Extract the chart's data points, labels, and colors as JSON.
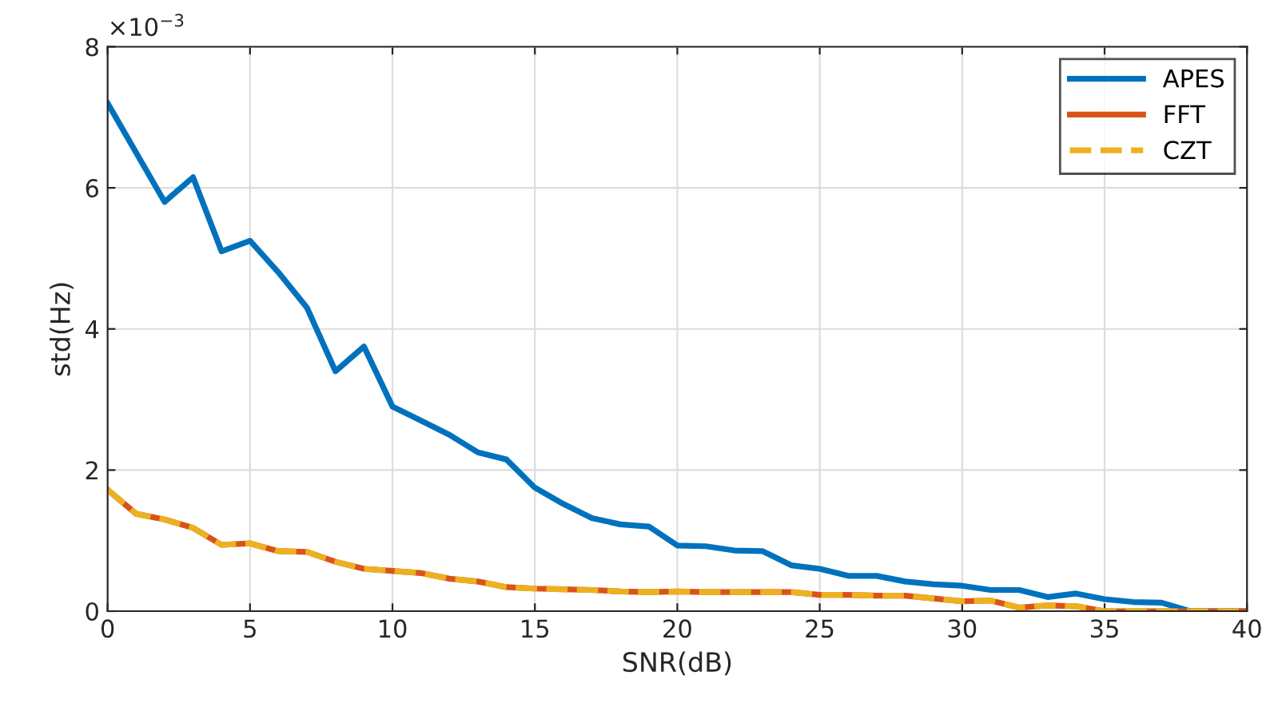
{
  "chart_data": {
    "type": "line",
    "xlabel": "SNR(dB)",
    "ylabel": "std(Hz)",
    "x": [
      0,
      1,
      2,
      3,
      4,
      5,
      6,
      7,
      8,
      9,
      10,
      11,
      12,
      13,
      14,
      15,
      16,
      17,
      18,
      19,
      20,
      21,
      22,
      23,
      24,
      25,
      26,
      27,
      28,
      29,
      30,
      31,
      32,
      33,
      34,
      35,
      36,
      37,
      38,
      39,
      40
    ],
    "series": [
      {
        "name": "APES",
        "color": "#0072bd",
        "line_style": "solid",
        "values": [
          7.2,
          6.5,
          5.8,
          6.15,
          5.1,
          5.25,
          4.8,
          4.3,
          3.4,
          3.75,
          2.9,
          2.7,
          2.5,
          2.25,
          2.15,
          1.75,
          1.52,
          1.32,
          1.23,
          1.2,
          0.93,
          0.92,
          0.86,
          0.85,
          0.65,
          0.6,
          0.5,
          0.5,
          0.42,
          0.38,
          0.36,
          0.3,
          0.3,
          0.2,
          0.25,
          0.17,
          0.13,
          0.12,
          0,
          0,
          0
        ]
      },
      {
        "name": "FFT",
        "color": "#d95319",
        "line_style": "solid",
        "values": [
          1.72,
          1.38,
          1.3,
          1.18,
          0.94,
          0.96,
          0.85,
          0.84,
          0.7,
          0.6,
          0.57,
          0.54,
          0.46,
          0.42,
          0.34,
          0.32,
          0.31,
          0.3,
          0.28,
          0.27,
          0.28,
          0.27,
          0.27,
          0.27,
          0.27,
          0.23,
          0.23,
          0.22,
          0.22,
          0.18,
          0.14,
          0.15,
          0.05,
          0.08,
          0.07,
          0,
          0,
          0,
          0,
          0,
          0
        ]
      },
      {
        "name": "CZT",
        "color": "#edb120",
        "line_style": "dashed",
        "values": [
          1.72,
          1.38,
          1.3,
          1.18,
          0.94,
          0.96,
          0.85,
          0.84,
          0.7,
          0.6,
          0.57,
          0.54,
          0.46,
          0.42,
          0.34,
          0.32,
          0.31,
          0.3,
          0.28,
          0.27,
          0.28,
          0.27,
          0.27,
          0.27,
          0.27,
          0.23,
          0.23,
          0.22,
          0.22,
          0.18,
          0.14,
          0.15,
          0.05,
          0.08,
          0.07,
          0,
          0,
          0,
          0,
          0,
          0
        ]
      }
    ],
    "xlim": [
      0,
      40
    ],
    "xticks": [
      0,
      5,
      10,
      15,
      20,
      25,
      30,
      35,
      40
    ],
    "ylim": [
      0,
      8
    ],
    "yticks": [
      0,
      2,
      4,
      6,
      8
    ],
    "annotations": [
      "×10$^{−3}$"
    ],
    "grid": true,
    "legend": "top right",
    "marker": "none"
  }
}
